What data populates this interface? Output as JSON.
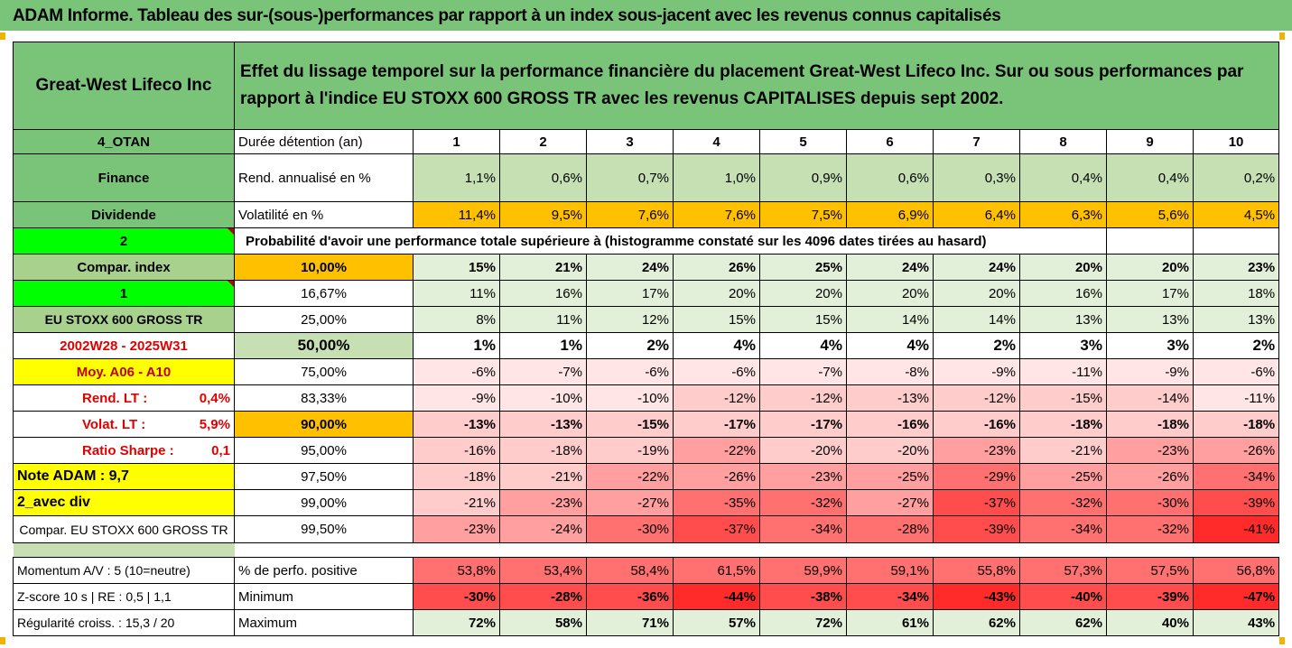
{
  "banner": {
    "title": "ADAM Informe. Tableau des sur-(sous-)performances par rapport à un index sous-jacent avec les revenus connus capitalisés"
  },
  "header": {
    "company": "Great-West Lifeco Inc",
    "description": "Effet du lissage temporel sur la performance financière du placement Great-West Lifeco Inc. Sur ou sous performances par rapport à l'indice EU STOXX 600 GROSS TR avec les revenus CAPITALISES depuis sept 2002."
  },
  "labels": {
    "code": "4_OTAN",
    "sector": "Finance",
    "dividend": "Dividende",
    "two": "2",
    "compar_index": "Compar. index",
    "one": "1",
    "index_name": "EU STOXX 600 GROSS TR",
    "period": "2002W28 - 2025W31",
    "moy": "Moy. A06 - A10",
    "rend_lt_label": "Rend. LT :",
    "rend_lt_value": "0,4%",
    "volat_lt_label": "Volat. LT :",
    "volat_lt_value": "5,9%",
    "sharpe_label": "Ratio Sharpe :",
    "sharpe_value": "0,1",
    "note": "Note ADAM : 9,7",
    "avec_div": "2_avec div",
    "compar_full": "Compar. EU STOXX 600 GROSS TR",
    "momentum": "Momentum A/V : 5 (10=neutre)",
    "zscore": "Z-score 10 s  |  RE : 0,5  |  1,1",
    "regularite": "Régularité croiss. : 15,3 / 20"
  },
  "row_labels": {
    "duree": "Durée détention (an)",
    "rend": "Rend. annualisé en %",
    "volat": "Volatilité en %",
    "proba": "Probabilité d'avoir une performance totale supérieure à (histogramme constaté sur les 4096 dates tirées au hasard)",
    "pct_positive": "% de perfo. positive",
    "minimum": "Minimum",
    "maximum": "Maximum"
  },
  "years": [
    "1",
    "2",
    "3",
    "4",
    "5",
    "6",
    "7",
    "8",
    "9",
    "10"
  ],
  "rend": [
    "1,1%",
    "0,6%",
    "0,7%",
    "1,0%",
    "0,9%",
    "0,6%",
    "0,3%",
    "0,4%",
    "0,4%",
    "0,2%"
  ],
  "volat": [
    "11,4%",
    "9,5%",
    "7,6%",
    "7,6%",
    "7,5%",
    "6,9%",
    "6,4%",
    "6,3%",
    "5,6%",
    "4,5%"
  ],
  "quantiles": [
    {
      "label": "10,00%",
      "values": [
        "15%",
        "21%",
        "24%",
        "26%",
        "25%",
        "24%",
        "24%",
        "20%",
        "20%",
        "23%"
      ]
    },
    {
      "label": "16,67%",
      "values": [
        "11%",
        "16%",
        "17%",
        "20%",
        "20%",
        "20%",
        "20%",
        "16%",
        "17%",
        "18%"
      ]
    },
    {
      "label": "25,00%",
      "values": [
        "8%",
        "11%",
        "12%",
        "15%",
        "15%",
        "14%",
        "14%",
        "13%",
        "13%",
        "13%"
      ]
    },
    {
      "label": "50,00%",
      "values": [
        "1%",
        "1%",
        "2%",
        "4%",
        "4%",
        "4%",
        "2%",
        "3%",
        "3%",
        "2%"
      ]
    },
    {
      "label": "75,00%",
      "values": [
        "-6%",
        "-7%",
        "-6%",
        "-6%",
        "-7%",
        "-8%",
        "-9%",
        "-11%",
        "-9%",
        "-6%"
      ]
    },
    {
      "label": "83,33%",
      "values": [
        "-9%",
        "-10%",
        "-10%",
        "-12%",
        "-12%",
        "-13%",
        "-12%",
        "-15%",
        "-14%",
        "-11%"
      ]
    },
    {
      "label": "90,00%",
      "values": [
        "-13%",
        "-13%",
        "-15%",
        "-17%",
        "-17%",
        "-16%",
        "-16%",
        "-18%",
        "-18%",
        "-18%"
      ]
    },
    {
      "label": "95,00%",
      "values": [
        "-16%",
        "-18%",
        "-19%",
        "-22%",
        "-20%",
        "-20%",
        "-23%",
        "-21%",
        "-23%",
        "-26%"
      ]
    },
    {
      "label": "97,50%",
      "values": [
        "-18%",
        "-21%",
        "-22%",
        "-26%",
        "-23%",
        "-25%",
        "-29%",
        "-25%",
        "-26%",
        "-34%"
      ]
    },
    {
      "label": "99,00%",
      "values": [
        "-21%",
        "-23%",
        "-27%",
        "-35%",
        "-32%",
        "-27%",
        "-37%",
        "-32%",
        "-30%",
        "-39%"
      ]
    },
    {
      "label": "99,50%",
      "values": [
        "-23%",
        "-24%",
        "-30%",
        "-37%",
        "-34%",
        "-28%",
        "-39%",
        "-34%",
        "-32%",
        "-41%"
      ]
    }
  ],
  "pct_positive": [
    "53,8%",
    "53,4%",
    "58,4%",
    "61,5%",
    "59,9%",
    "59,1%",
    "55,8%",
    "57,3%",
    "57,5%",
    "56,8%"
  ],
  "minimum": [
    "-30%",
    "-28%",
    "-36%",
    "-44%",
    "-38%",
    "-34%",
    "-43%",
    "-40%",
    "-39%",
    "-47%"
  ],
  "maximum": [
    "72%",
    "58%",
    "71%",
    "57%",
    "72%",
    "61%",
    "62%",
    "62%",
    "40%",
    "43%"
  ],
  "colors": {
    "header_green": "#7ac47a",
    "orange": "#ffc000",
    "yellow": "#ffff00",
    "bright_green": "#00ff00",
    "red_text": "#e00000"
  }
}
